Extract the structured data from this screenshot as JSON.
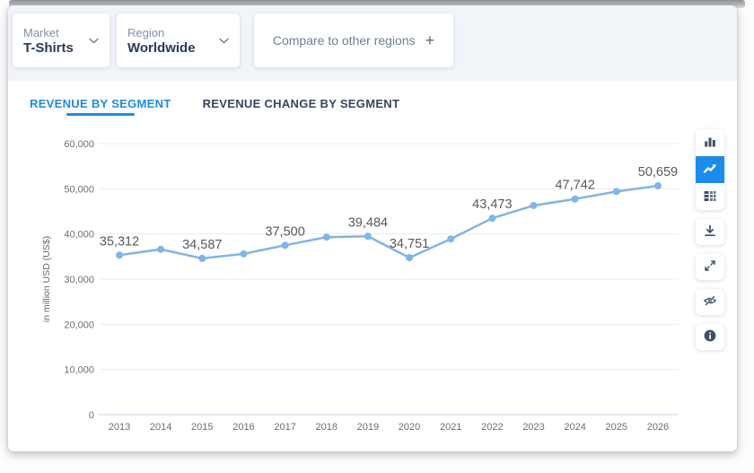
{
  "filters": {
    "market": {
      "label": "Market",
      "value": "T-Shirts"
    },
    "region": {
      "label": "Region",
      "value": "Worldwide"
    },
    "compare": {
      "label": "Compare to other regions",
      "plus": "+"
    }
  },
  "tabs": [
    {
      "label": "REVENUE BY SEGMENT",
      "active": true
    },
    {
      "label": "REVENUE CHANGE BY SEGMENT",
      "active": false
    }
  ],
  "toolbar": {
    "buttons": [
      {
        "name": "bar-chart",
        "active": false
      },
      {
        "name": "line-chart",
        "active": true
      },
      {
        "name": "table-view",
        "active": false
      },
      {
        "name": "download",
        "active": false
      },
      {
        "name": "fullscreen",
        "active": false
      },
      {
        "name": "hide-labels",
        "active": false
      },
      {
        "name": "info",
        "active": false
      }
    ]
  },
  "chart_data": {
    "type": "line",
    "title": "",
    "xlabel": "",
    "ylabel": "in million USD (US$)",
    "ylim": [
      0,
      60000
    ],
    "yticks": [
      0,
      10000,
      20000,
      30000,
      40000,
      50000,
      60000
    ],
    "ytick_labels": [
      "0",
      "10,000",
      "20,000",
      "30,000",
      "40,000",
      "50,000",
      "60,000"
    ],
    "grid": true,
    "legend": "none",
    "categories": [
      "2013",
      "2014",
      "2015",
      "2016",
      "2017",
      "2018",
      "2019",
      "2020",
      "2021",
      "2022",
      "2023",
      "2024",
      "2025",
      "2026"
    ],
    "series": [
      {
        "name": "Revenue",
        "values": [
          35312,
          36600,
          34587,
          35600,
          37500,
          39300,
          39484,
          34751,
          38900,
          43473,
          46300,
          47742,
          49400,
          50659
        ]
      }
    ],
    "point_labels": {
      "2013": "35,312",
      "2015": "34,587",
      "2017": "37,500",
      "2019": "39,484",
      "2020": "34,751",
      "2022": "43,473",
      "2024": "47,742",
      "2026": "50,659"
    },
    "estimated_years": [
      "2014",
      "2016",
      "2018",
      "2021",
      "2023",
      "2025"
    ]
  },
  "colors": {
    "accent_blue": "#1b8ceb",
    "line_blue": "#7fb5e7",
    "header_bg": "#f1f4f8",
    "grid": "#ebecee",
    "axis_line": "#c9d6ea",
    "tick_text": "#6e6e6e",
    "data_label": "#58595b",
    "icon_dark": "#3e4f66"
  }
}
